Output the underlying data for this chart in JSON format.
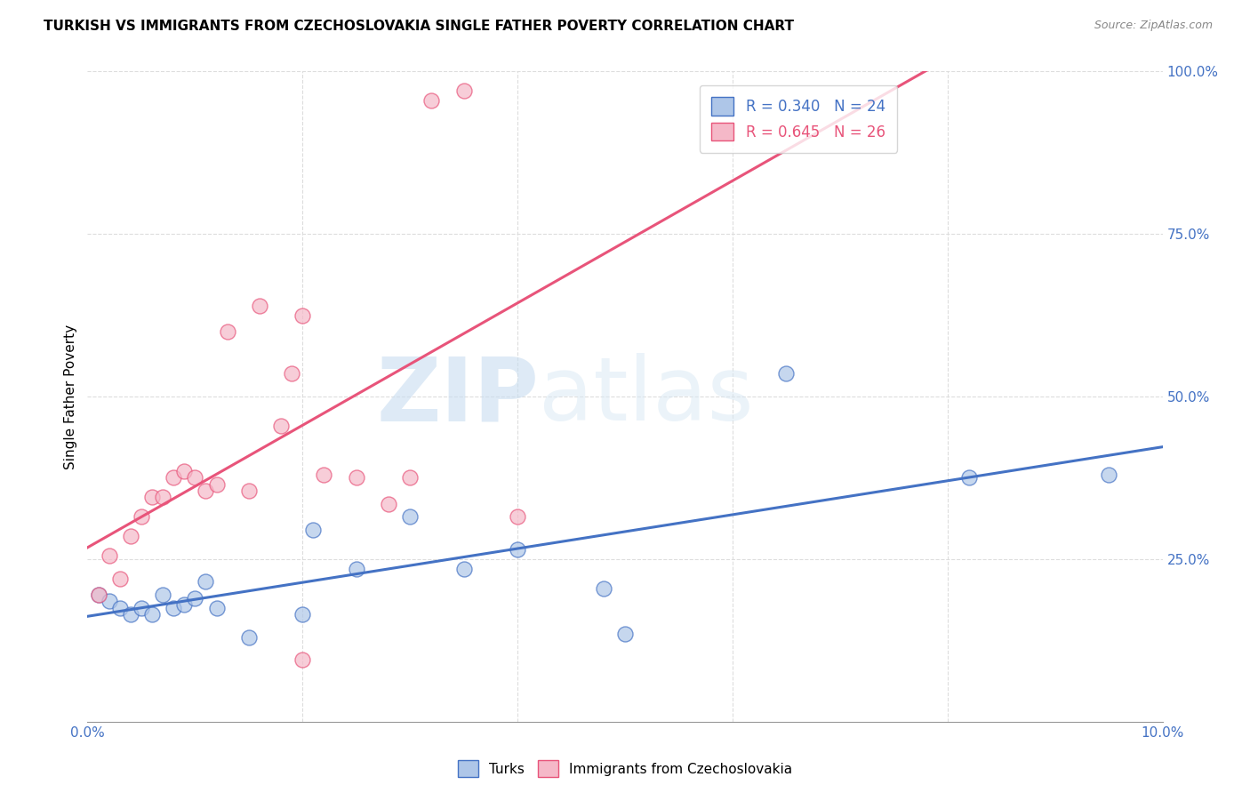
{
  "title": "TURKISH VS IMMIGRANTS FROM CZECHOSLOVAKIA SINGLE FATHER POVERTY CORRELATION CHART",
  "source": "Source: ZipAtlas.com",
  "ylabel": "Single Father Poverty",
  "xlim": [
    0.0,
    0.1
  ],
  "ylim": [
    0.0,
    1.0
  ],
  "xticks": [
    0.0,
    0.02,
    0.04,
    0.06,
    0.08,
    0.1
  ],
  "xtick_labels": [
    "0.0%",
    "",
    "",
    "",
    "",
    "10.0%"
  ],
  "yticks": [
    0.0,
    0.25,
    0.5,
    0.75,
    1.0
  ],
  "ytick_labels": [
    "",
    "25.0%",
    "50.0%",
    "75.0%",
    "100.0%"
  ],
  "turks_R": 0.34,
  "turks_N": 24,
  "czech_R": 0.645,
  "czech_N": 26,
  "turks_color": "#aec6e8",
  "czech_color": "#f5b8c8",
  "turks_line_color": "#4472c4",
  "czech_line_color": "#e8547a",
  "turks_x": [
    0.001,
    0.002,
    0.003,
    0.004,
    0.005,
    0.006,
    0.007,
    0.008,
    0.009,
    0.01,
    0.011,
    0.012,
    0.015,
    0.02,
    0.021,
    0.025,
    0.03,
    0.035,
    0.04,
    0.048,
    0.05,
    0.065,
    0.082,
    0.095
  ],
  "turks_y": [
    0.195,
    0.185,
    0.175,
    0.165,
    0.175,
    0.165,
    0.195,
    0.175,
    0.18,
    0.19,
    0.215,
    0.175,
    0.13,
    0.165,
    0.295,
    0.235,
    0.315,
    0.235,
    0.265,
    0.205,
    0.135,
    0.535,
    0.375,
    0.38
  ],
  "czech_x": [
    0.001,
    0.002,
    0.003,
    0.004,
    0.005,
    0.006,
    0.007,
    0.008,
    0.009,
    0.01,
    0.011,
    0.012,
    0.013,
    0.015,
    0.016,
    0.018,
    0.019,
    0.02,
    0.022,
    0.025,
    0.028,
    0.03,
    0.032,
    0.035,
    0.02,
    0.04
  ],
  "czech_y": [
    0.195,
    0.255,
    0.22,
    0.285,
    0.315,
    0.345,
    0.345,
    0.375,
    0.385,
    0.375,
    0.355,
    0.365,
    0.6,
    0.355,
    0.64,
    0.455,
    0.535,
    0.625,
    0.38,
    0.375,
    0.335,
    0.375,
    0.955,
    0.97,
    0.095,
    0.315
  ],
  "watermark_zip": "ZIP",
  "watermark_atlas": "atlas",
  "background_color": "#ffffff",
  "grid_color": "#dddddd"
}
